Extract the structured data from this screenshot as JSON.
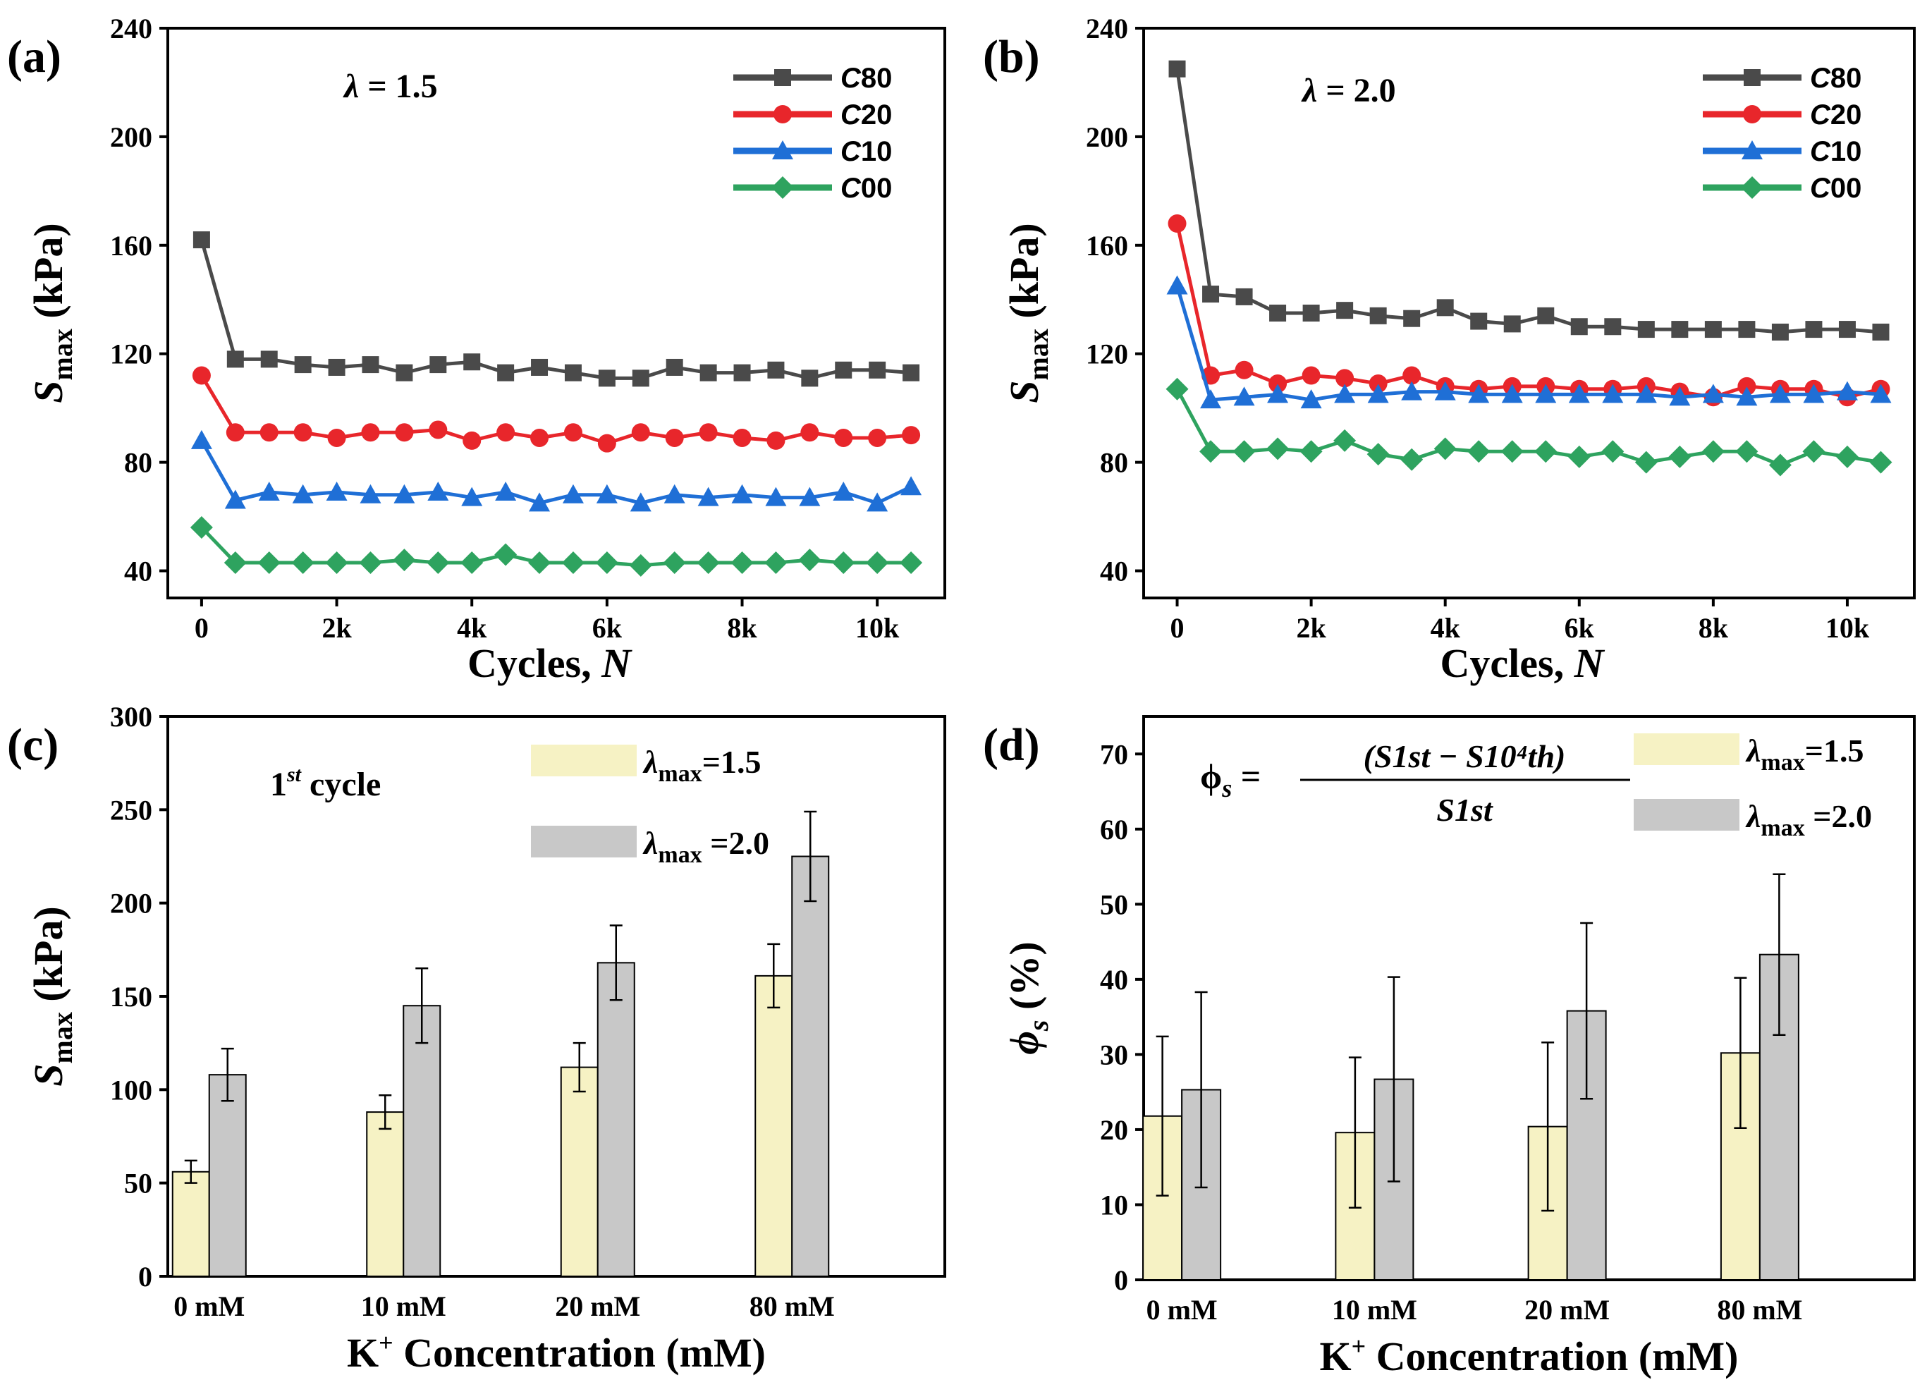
{
  "colors": {
    "C80": "#4a4a4a",
    "C20": "#e8262b",
    "C10": "#1f6fd6",
    "C00": "#2ea35f",
    "bar15": "#f6f2c4",
    "bar20": "#c8c8c8"
  },
  "chart_data": [
    {
      "id": "a",
      "type": "line",
      "panel_label": "(a)",
      "annotation": "λ = 1.5",
      "xlabel": "Cycles, N",
      "ylabel": "S_max (kPa)",
      "ylim": [
        30,
        240
      ],
      "xlim": [
        -500,
        11000
      ],
      "yticks": [
        40,
        80,
        120,
        160,
        200,
        240
      ],
      "xticks": [
        0,
        2000,
        4000,
        6000,
        8000,
        10000
      ],
      "xtick_labels": [
        "0",
        "2k",
        "4k",
        "6k",
        "8k",
        "10k"
      ],
      "x": [
        0,
        500,
        1000,
        1500,
        2000,
        2500,
        3000,
        3500,
        4000,
        4500,
        5000,
        5500,
        6000,
        6500,
        7000,
        7500,
        8000,
        8500,
        9000,
        9500,
        10000,
        10500
      ],
      "series": [
        {
          "name": "C80",
          "marker": "square",
          "values": [
            162,
            118,
            118,
            116,
            115,
            116,
            113,
            116,
            117,
            113,
            115,
            113,
            111,
            111,
            115,
            113,
            113,
            114,
            111,
            114,
            114,
            113
          ]
        },
        {
          "name": "C20",
          "marker": "circle",
          "values": [
            112,
            91,
            91,
            91,
            89,
            91,
            91,
            92,
            88,
            91,
            89,
            91,
            87,
            91,
            89,
            91,
            89,
            88,
            91,
            89,
            89,
            90
          ]
        },
        {
          "name": "C10",
          "marker": "triangle",
          "values": [
            88,
            66,
            69,
            68,
            69,
            68,
            68,
            69,
            67,
            69,
            65,
            68,
            68,
            65,
            68,
            67,
            68,
            67,
            67,
            69,
            65,
            71
          ]
        },
        {
          "name": "C00",
          "marker": "diamond",
          "values": [
            56,
            43,
            43,
            43,
            43,
            43,
            44,
            43,
            43,
            46,
            43,
            43,
            43,
            42,
            43,
            43,
            43,
            43,
            44,
            43,
            43,
            43
          ]
        }
      ]
    },
    {
      "id": "b",
      "type": "line",
      "panel_label": "(b)",
      "annotation": "λ = 2.0",
      "xlabel": "Cycles, N",
      "ylabel": "S_max (kPa)",
      "ylim": [
        30,
        240
      ],
      "xlim": [
        -500,
        11000
      ],
      "yticks": [
        40,
        80,
        120,
        160,
        200,
        240
      ],
      "xticks": [
        0,
        2000,
        4000,
        6000,
        8000,
        10000
      ],
      "xtick_labels": [
        "0",
        "2k",
        "4k",
        "6k",
        "8k",
        "10k"
      ],
      "x": [
        0,
        500,
        1000,
        1500,
        2000,
        2500,
        3000,
        3500,
        4000,
        4500,
        5000,
        5500,
        6000,
        6500,
        7000,
        7500,
        8000,
        8500,
        9000,
        9500,
        10000,
        10500
      ],
      "series": [
        {
          "name": "C80",
          "marker": "square",
          "values": [
            225,
            142,
            141,
            135,
            135,
            136,
            134,
            133,
            137,
            132,
            131,
            134,
            130,
            130,
            129,
            129,
            129,
            129,
            128,
            129,
            129,
            128
          ]
        },
        {
          "name": "C20",
          "marker": "circle",
          "values": [
            168,
            112,
            114,
            109,
            112,
            111,
            109,
            112,
            108,
            107,
            108,
            108,
            107,
            107,
            108,
            106,
            104,
            108,
            107,
            107,
            104,
            107
          ]
        },
        {
          "name": "C10",
          "marker": "triangle",
          "values": [
            145,
            103,
            104,
            105,
            103,
            105,
            105,
            106,
            106,
            105,
            105,
            105,
            105,
            105,
            105,
            104,
            105,
            104,
            105,
            105,
            106,
            105
          ]
        },
        {
          "name": "C00",
          "marker": "diamond",
          "values": [
            107,
            84,
            84,
            85,
            84,
            88,
            83,
            81,
            85,
            84,
            84,
            84,
            82,
            84,
            80,
            82,
            84,
            84,
            79,
            84,
            82,
            80
          ]
        }
      ]
    },
    {
      "id": "c",
      "type": "bar",
      "panel_label": "(c)",
      "annotation_main": "1",
      "annotation_sup": "st",
      "annotation_rest": " cycle",
      "xlabel_main": "K",
      "xlabel_sup": "+",
      "xlabel_rest": " Concentration (mM)",
      "ylabel": "S_max (kPa)",
      "ylim": [
        0,
        300
      ],
      "yticks": [
        0,
        50,
        100,
        150,
        200,
        250,
        300
      ],
      "categories": [
        "0 mM",
        "10 mM",
        "20 mM",
        "80 mM"
      ],
      "series": [
        {
          "name": "λmax=1.5",
          "values": [
            56,
            88,
            112,
            161
          ],
          "errors": [
            6,
            9,
            13,
            17
          ]
        },
        {
          "name": "λmax =2.0",
          "values": [
            108,
            145,
            168,
            225
          ],
          "errors": [
            14,
            20,
            20,
            24
          ]
        }
      ]
    },
    {
      "id": "d",
      "type": "bar",
      "panel_label": "(d)",
      "formula_lhs": "ϕs =",
      "formula_num": "(S1st − S10⁴th)",
      "formula_den": "S1st",
      "xlabel_main": "K",
      "xlabel_sup": "+",
      "xlabel_rest": " Concentration (mM)",
      "ylabel": "ϕs (%)",
      "ylim": [
        0,
        75
      ],
      "yticks": [
        0,
        10,
        20,
        30,
        40,
        50,
        60,
        70
      ],
      "categories": [
        "0 mM",
        "10 mM",
        "20 mM",
        "80 mM"
      ],
      "series": [
        {
          "name": "λmax=1.5",
          "values": [
            21.8,
            19.6,
            20.4,
            30.2
          ],
          "errors": [
            10.6,
            10.0,
            11.2,
            10.0
          ]
        },
        {
          "name": "λmax =2.0",
          "values": [
            25.3,
            26.7,
            35.8,
            43.3
          ],
          "errors": [
            13.0,
            13.6,
            11.7,
            10.7
          ]
        }
      ]
    }
  ],
  "legend_line": [
    "C80",
    "C20",
    "C10",
    "C00"
  ],
  "legend_line_prefix": "C",
  "legend_line_suffix": [
    "80",
    "20",
    "10",
    "00"
  ],
  "legend_bar": {
    "sym": "λ",
    "sub": "max",
    "items": [
      "=1.5",
      " =2.0"
    ]
  }
}
